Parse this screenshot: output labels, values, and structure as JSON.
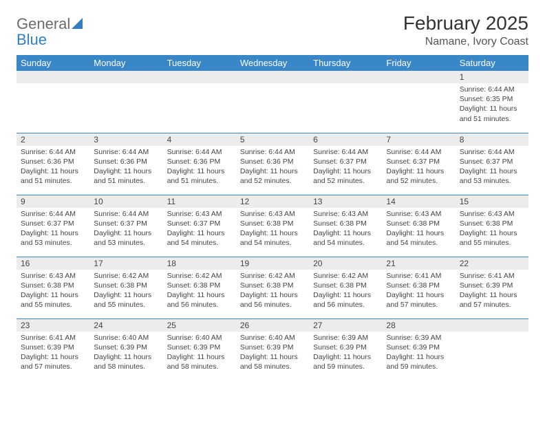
{
  "brand": {
    "name_gray": "General",
    "name_blue": "Blue"
  },
  "header": {
    "month_title": "February 2025",
    "location": "Namane, Ivory Coast"
  },
  "colors": {
    "header_bg": "#3a87c8",
    "header_text": "#ffffff",
    "daynum_bg": "#ececec",
    "row_border": "#3a87c8",
    "body_text": "#444444",
    "logo_gray": "#6b6b6b",
    "logo_blue": "#2f7fc2"
  },
  "day_names": [
    "Sunday",
    "Monday",
    "Tuesday",
    "Wednesday",
    "Thursday",
    "Friday",
    "Saturday"
  ],
  "weeks": [
    [
      {
        "n": "",
        "sr": "",
        "ss": "",
        "dl": ""
      },
      {
        "n": "",
        "sr": "",
        "ss": "",
        "dl": ""
      },
      {
        "n": "",
        "sr": "",
        "ss": "",
        "dl": ""
      },
      {
        "n": "",
        "sr": "",
        "ss": "",
        "dl": ""
      },
      {
        "n": "",
        "sr": "",
        "ss": "",
        "dl": ""
      },
      {
        "n": "",
        "sr": "",
        "ss": "",
        "dl": ""
      },
      {
        "n": "1",
        "sr": "Sunrise: 6:44 AM",
        "ss": "Sunset: 6:35 PM",
        "dl": "Daylight: 11 hours and 51 minutes."
      }
    ],
    [
      {
        "n": "2",
        "sr": "Sunrise: 6:44 AM",
        "ss": "Sunset: 6:36 PM",
        "dl": "Daylight: 11 hours and 51 minutes."
      },
      {
        "n": "3",
        "sr": "Sunrise: 6:44 AM",
        "ss": "Sunset: 6:36 PM",
        "dl": "Daylight: 11 hours and 51 minutes."
      },
      {
        "n": "4",
        "sr": "Sunrise: 6:44 AM",
        "ss": "Sunset: 6:36 PM",
        "dl": "Daylight: 11 hours and 51 minutes."
      },
      {
        "n": "5",
        "sr": "Sunrise: 6:44 AM",
        "ss": "Sunset: 6:36 PM",
        "dl": "Daylight: 11 hours and 52 minutes."
      },
      {
        "n": "6",
        "sr": "Sunrise: 6:44 AM",
        "ss": "Sunset: 6:37 PM",
        "dl": "Daylight: 11 hours and 52 minutes."
      },
      {
        "n": "7",
        "sr": "Sunrise: 6:44 AM",
        "ss": "Sunset: 6:37 PM",
        "dl": "Daylight: 11 hours and 52 minutes."
      },
      {
        "n": "8",
        "sr": "Sunrise: 6:44 AM",
        "ss": "Sunset: 6:37 PM",
        "dl": "Daylight: 11 hours and 53 minutes."
      }
    ],
    [
      {
        "n": "9",
        "sr": "Sunrise: 6:44 AM",
        "ss": "Sunset: 6:37 PM",
        "dl": "Daylight: 11 hours and 53 minutes."
      },
      {
        "n": "10",
        "sr": "Sunrise: 6:44 AM",
        "ss": "Sunset: 6:37 PM",
        "dl": "Daylight: 11 hours and 53 minutes."
      },
      {
        "n": "11",
        "sr": "Sunrise: 6:43 AM",
        "ss": "Sunset: 6:37 PM",
        "dl": "Daylight: 11 hours and 54 minutes."
      },
      {
        "n": "12",
        "sr": "Sunrise: 6:43 AM",
        "ss": "Sunset: 6:38 PM",
        "dl": "Daylight: 11 hours and 54 minutes."
      },
      {
        "n": "13",
        "sr": "Sunrise: 6:43 AM",
        "ss": "Sunset: 6:38 PM",
        "dl": "Daylight: 11 hours and 54 minutes."
      },
      {
        "n": "14",
        "sr": "Sunrise: 6:43 AM",
        "ss": "Sunset: 6:38 PM",
        "dl": "Daylight: 11 hours and 54 minutes."
      },
      {
        "n": "15",
        "sr": "Sunrise: 6:43 AM",
        "ss": "Sunset: 6:38 PM",
        "dl": "Daylight: 11 hours and 55 minutes."
      }
    ],
    [
      {
        "n": "16",
        "sr": "Sunrise: 6:43 AM",
        "ss": "Sunset: 6:38 PM",
        "dl": "Daylight: 11 hours and 55 minutes."
      },
      {
        "n": "17",
        "sr": "Sunrise: 6:42 AM",
        "ss": "Sunset: 6:38 PM",
        "dl": "Daylight: 11 hours and 55 minutes."
      },
      {
        "n": "18",
        "sr": "Sunrise: 6:42 AM",
        "ss": "Sunset: 6:38 PM",
        "dl": "Daylight: 11 hours and 56 minutes."
      },
      {
        "n": "19",
        "sr": "Sunrise: 6:42 AM",
        "ss": "Sunset: 6:38 PM",
        "dl": "Daylight: 11 hours and 56 minutes."
      },
      {
        "n": "20",
        "sr": "Sunrise: 6:42 AM",
        "ss": "Sunset: 6:38 PM",
        "dl": "Daylight: 11 hours and 56 minutes."
      },
      {
        "n": "21",
        "sr": "Sunrise: 6:41 AM",
        "ss": "Sunset: 6:38 PM",
        "dl": "Daylight: 11 hours and 57 minutes."
      },
      {
        "n": "22",
        "sr": "Sunrise: 6:41 AM",
        "ss": "Sunset: 6:39 PM",
        "dl": "Daylight: 11 hours and 57 minutes."
      }
    ],
    [
      {
        "n": "23",
        "sr": "Sunrise: 6:41 AM",
        "ss": "Sunset: 6:39 PM",
        "dl": "Daylight: 11 hours and 57 minutes."
      },
      {
        "n": "24",
        "sr": "Sunrise: 6:40 AM",
        "ss": "Sunset: 6:39 PM",
        "dl": "Daylight: 11 hours and 58 minutes."
      },
      {
        "n": "25",
        "sr": "Sunrise: 6:40 AM",
        "ss": "Sunset: 6:39 PM",
        "dl": "Daylight: 11 hours and 58 minutes."
      },
      {
        "n": "26",
        "sr": "Sunrise: 6:40 AM",
        "ss": "Sunset: 6:39 PM",
        "dl": "Daylight: 11 hours and 58 minutes."
      },
      {
        "n": "27",
        "sr": "Sunrise: 6:39 AM",
        "ss": "Sunset: 6:39 PM",
        "dl": "Daylight: 11 hours and 59 minutes."
      },
      {
        "n": "28",
        "sr": "Sunrise: 6:39 AM",
        "ss": "Sunset: 6:39 PM",
        "dl": "Daylight: 11 hours and 59 minutes."
      },
      {
        "n": "",
        "sr": "",
        "ss": "",
        "dl": ""
      }
    ]
  ]
}
